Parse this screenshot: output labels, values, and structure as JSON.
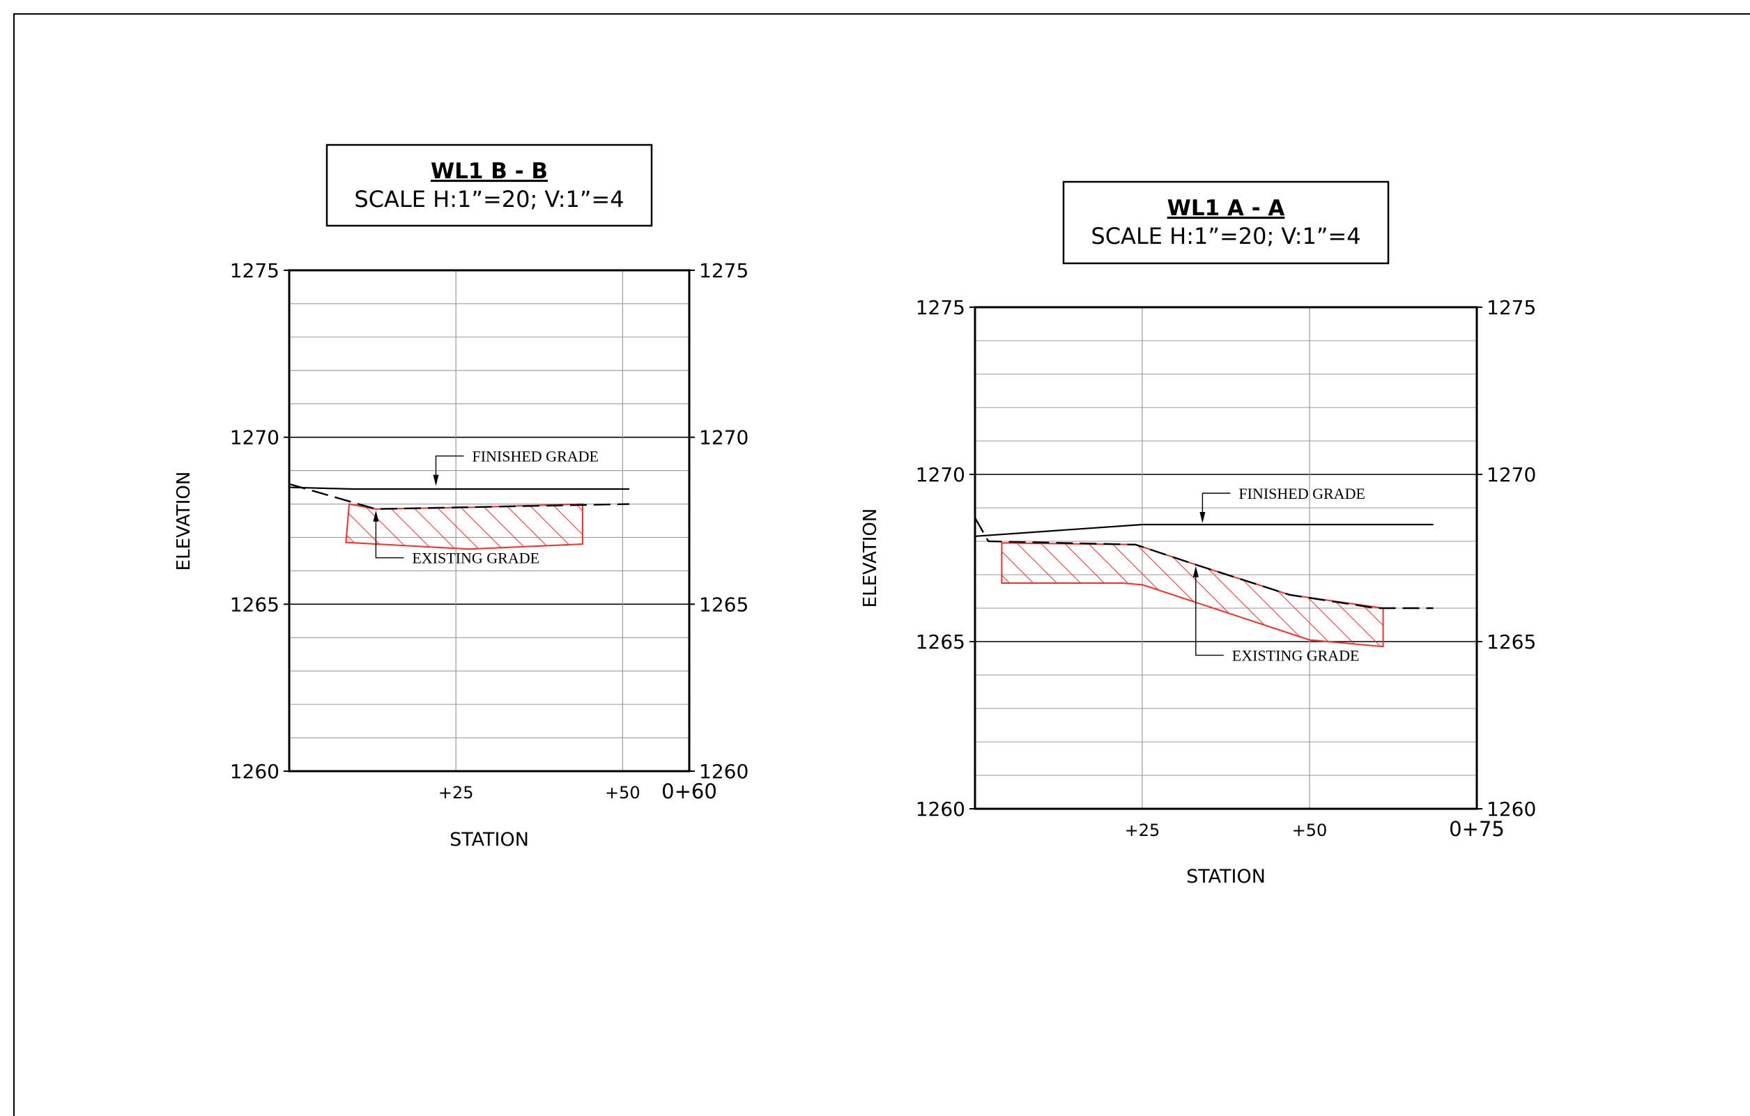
{
  "colors": {
    "line": "#000000",
    "grid": "#999999",
    "hatch": "#ff2a2a"
  },
  "chart_data": [
    {
      "type": "line",
      "title": "WL1 B - B",
      "subtitle": "SCALE H:1”=20; V:1”=4",
      "xlabel": "STATION",
      "ylabel": "ELEVATION",
      "xlim": [
        0,
        60
      ],
      "ylim": [
        1260,
        1275
      ],
      "x_ticks": [
        {
          "x": 25,
          "label": "+25"
        },
        {
          "x": 50,
          "label": "+50"
        },
        {
          "x": 60,
          "label": "0+60"
        }
      ],
      "y_ticks": [
        1260,
        1265,
        1270,
        1275
      ],
      "y_tick_labels": [
        "1260",
        "1265",
        "1270",
        "1275"
      ],
      "grid": true,
      "series": [
        {
          "name": "FINISHED GRADE",
          "style": "solid",
          "x": [
            0,
            9.5,
            51
          ],
          "y": [
            1268.5,
            1268.45,
            1268.45
          ]
        },
        {
          "name": "EXISTING GRADE",
          "style": "dashed",
          "x": [
            0,
            13,
            51
          ],
          "y": [
            1268.6,
            1267.85,
            1268.0
          ]
        }
      ],
      "cut_area": {
        "top": {
          "x": [
            9,
            13,
            27,
            44
          ],
          "y": [
            1268.0,
            1267.85,
            1267.9,
            1268.0
          ]
        },
        "bottom": {
          "x": [
            44,
            27,
            8.5
          ],
          "y": [
            1266.8,
            1266.65,
            1266.85
          ]
        }
      },
      "annotations": [
        {
          "text": "FINISHED GRADE",
          "x": 22,
          "y": 1268.5
        },
        {
          "text": "EXISTING GRADE",
          "x": 13,
          "y": 1267.85
        }
      ]
    },
    {
      "type": "line",
      "title": "WL1 A - A",
      "subtitle": "SCALE H:1”=20; V:1”=4",
      "xlabel": "STATION",
      "ylabel": "ELEVATION",
      "xlim": [
        0,
        75
      ],
      "ylim": [
        1260,
        1275
      ],
      "x_ticks": [
        {
          "x": 25,
          "label": "+25"
        },
        {
          "x": 50,
          "label": "+50"
        },
        {
          "x": 75,
          "label": "0+75"
        }
      ],
      "y_ticks": [
        1260,
        1265,
        1270,
        1275
      ],
      "y_tick_labels": [
        "1260",
        "1265",
        "1270",
        "1275"
      ],
      "grid": true,
      "series": [
        {
          "name": "FINISHED GRADE",
          "style": "solid",
          "x": [
            0,
            25,
            68.5
          ],
          "y": [
            1268.15,
            1268.5,
            1268.5
          ]
        },
        {
          "name": "EXISTING GRADE",
          "style": "dashed",
          "x": [
            0,
            2,
            24,
            33,
            47,
            60,
            68.5
          ],
          "y": [
            1268.7,
            1268.0,
            1267.9,
            1267.3,
            1266.4,
            1266.0,
            1266.0
          ]
        }
      ],
      "cut_area": {
        "top": {
          "x": [
            4,
            24,
            33,
            47,
            61
          ],
          "y": [
            1267.95,
            1267.9,
            1267.3,
            1266.4,
            1266.0
          ]
        },
        "bottom": {
          "x": [
            61,
            50,
            25,
            22,
            4
          ],
          "y": [
            1264.85,
            1265.05,
            1266.7,
            1266.75,
            1266.75
          ]
        }
      },
      "annotations": [
        {
          "text": "FINISHED GRADE",
          "x": 34,
          "y": 1268.5
        },
        {
          "text": "EXISTING GRADE",
          "x": 33,
          "y": 1267.3
        }
      ]
    }
  ]
}
